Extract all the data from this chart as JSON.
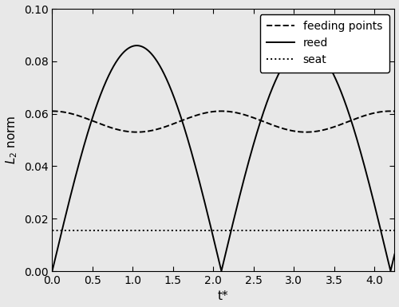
{
  "title": "",
  "xlabel": "t*",
  "ylabel": "$L_2$ norm",
  "xlim": [
    0.0,
    4.25
  ],
  "ylim": [
    0.0,
    0.1
  ],
  "xticks": [
    0.0,
    0.5,
    1.0,
    1.5,
    2.0,
    2.5,
    3.0,
    3.5,
    4.0
  ],
  "yticks": [
    0.0,
    0.02,
    0.04,
    0.06,
    0.08,
    0.1
  ],
  "reed_amplitude": 0.086,
  "reed_period": 2.1,
  "feeding_mean": 0.057,
  "feeding_amplitude": 0.004,
  "feeding_period": 2.1,
  "seat_value": 0.0155,
  "line_color": "black",
  "background_color": "#e8e8e8",
  "legend_labels": [
    "feeding points",
    "reed",
    "seat"
  ],
  "figsize": [
    5.0,
    3.85
  ],
  "dpi": 100
}
